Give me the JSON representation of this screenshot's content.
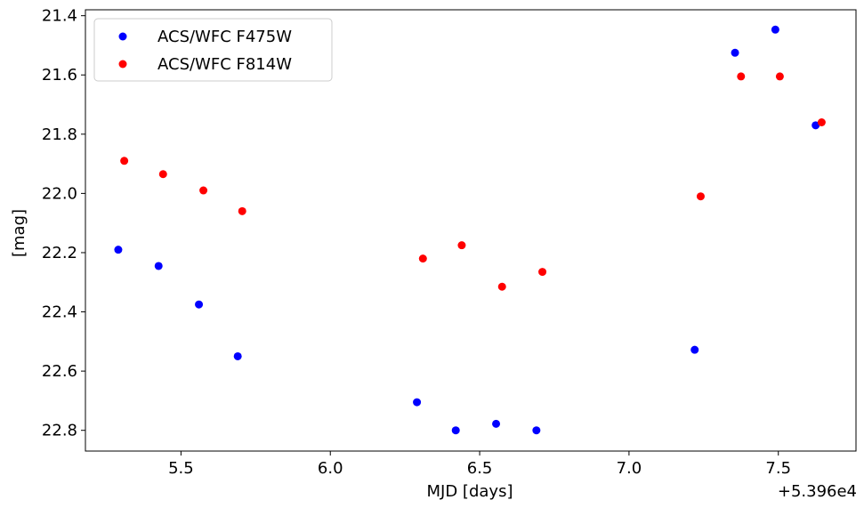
{
  "chart_data": {
    "type": "scatter",
    "xlabel": "MJD [days]",
    "ylabel": "[mag]",
    "x_offset_label": "+5.396e4",
    "xlim": [
      5.18,
      7.76
    ],
    "ylim": [
      22.87,
      21.38
    ],
    "y_inverted": true,
    "x_ticks": [
      "5.5",
      "6.0",
      "6.5",
      "7.0",
      "7.5"
    ],
    "y_ticks": [
      "21.4",
      "21.6",
      "21.8",
      "22.0",
      "22.2",
      "22.4",
      "22.6",
      "22.8"
    ],
    "grid": false,
    "legend_position": "top-left",
    "series": [
      {
        "name": "ACS/WFC F475W",
        "color": "#0000ff",
        "points": [
          {
            "x": 5.29,
            "y": 22.19
          },
          {
            "x": 5.425,
            "y": 22.245
          },
          {
            "x": 5.56,
            "y": 22.375
          },
          {
            "x": 5.69,
            "y": 22.55
          },
          {
            "x": 6.29,
            "y": 22.705
          },
          {
            "x": 6.42,
            "y": 22.8
          },
          {
            "x": 6.555,
            "y": 22.778
          },
          {
            "x": 6.69,
            "y": 22.8
          },
          {
            "x": 7.22,
            "y": 22.528
          },
          {
            "x": 7.355,
            "y": 21.525
          },
          {
            "x": 7.49,
            "y": 21.447
          },
          {
            "x": 7.625,
            "y": 21.77
          }
        ]
      },
      {
        "name": "ACS/WFC F814W",
        "color": "#ff0000",
        "points": [
          {
            "x": 5.31,
            "y": 21.89
          },
          {
            "x": 5.44,
            "y": 21.935
          },
          {
            "x": 5.575,
            "y": 21.99
          },
          {
            "x": 5.705,
            "y": 22.06
          },
          {
            "x": 6.31,
            "y": 22.22
          },
          {
            "x": 6.44,
            "y": 22.175
          },
          {
            "x": 6.575,
            "y": 22.315
          },
          {
            "x": 6.71,
            "y": 22.265
          },
          {
            "x": 7.24,
            "y": 22.01
          },
          {
            "x": 7.375,
            "y": 21.605
          },
          {
            "x": 7.505,
            "y": 21.605
          },
          {
            "x": 7.645,
            "y": 21.76
          }
        ]
      }
    ]
  }
}
